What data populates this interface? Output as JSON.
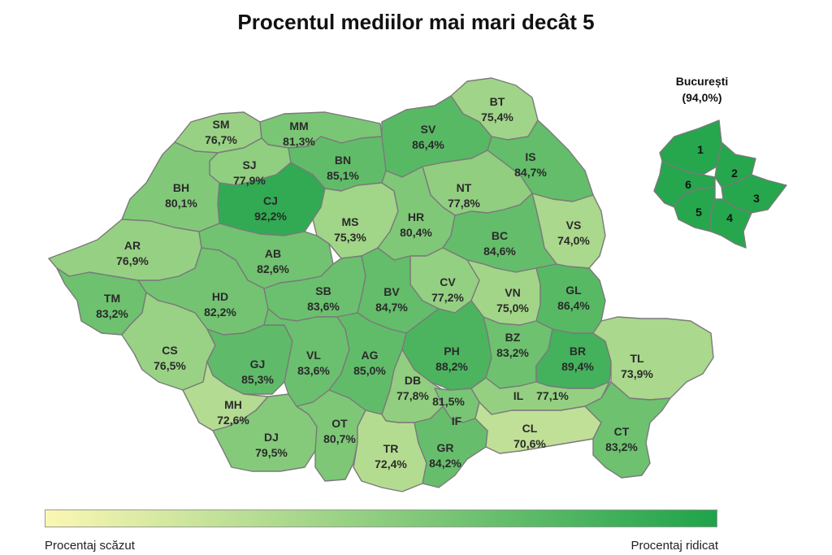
{
  "title": "Procentul mediilor mai mari decât 5",
  "bucuresti": {
    "name": "București",
    "value_label": "(94,0%)",
    "sectors": [
      {
        "id": "1",
        "value": 94.0
      },
      {
        "id": "2",
        "value": 94.0
      },
      {
        "id": "3",
        "value": 94.0
      },
      {
        "id": "4",
        "value": 94.0
      },
      {
        "id": "5",
        "value": 94.0
      },
      {
        "id": "6",
        "value": 94.0
      }
    ]
  },
  "legend": {
    "low_label": "Procentaj scăzut",
    "high_label": "Procentaj ridicat",
    "color_low": "#fbf7b3",
    "color_high": "#1fa34a"
  },
  "chart_data": {
    "type": "choropleth",
    "regions": [
      {
        "code": "SM",
        "label": "76,7%",
        "value": 76.7
      },
      {
        "code": "MM",
        "label": "81,3%",
        "value": 81.3
      },
      {
        "code": "BT",
        "label": "75,4%",
        "value": 75.4
      },
      {
        "code": "SV",
        "label": "86,4%",
        "value": 86.4
      },
      {
        "code": "SJ",
        "label": "77,9%",
        "value": 77.9
      },
      {
        "code": "BN",
        "label": "85,1%",
        "value": 85.1
      },
      {
        "code": "IS",
        "label": "84,7%",
        "value": 84.7
      },
      {
        "code": "BH",
        "label": "80,1%",
        "value": 80.1
      },
      {
        "code": "CJ",
        "label": "92,2%",
        "value": 92.2
      },
      {
        "code": "NT",
        "label": "77,8%",
        "value": 77.8
      },
      {
        "code": "MS",
        "label": "75,3%",
        "value": 75.3
      },
      {
        "code": "HR",
        "label": "80,4%",
        "value": 80.4
      },
      {
        "code": "VS",
        "label": "74,0%",
        "value": 74.0
      },
      {
        "code": "BC",
        "label": "84,6%",
        "value": 84.6
      },
      {
        "code": "AR",
        "label": "76,9%",
        "value": 76.9
      },
      {
        "code": "AB",
        "label": "82,6%",
        "value": 82.6
      },
      {
        "code": "CV",
        "label": "77,2%",
        "value": 77.2
      },
      {
        "code": "TM",
        "label": "83,2%",
        "value": 83.2
      },
      {
        "code": "HD",
        "label": "82,2%",
        "value": 82.2
      },
      {
        "code": "SB",
        "label": "83,6%",
        "value": 83.6
      },
      {
        "code": "BV",
        "label": "84,7%",
        "value": 84.7
      },
      {
        "code": "VN",
        "label": "75,0%",
        "value": 75.0
      },
      {
        "code": "GL",
        "label": "86,4%",
        "value": 86.4
      },
      {
        "code": "CS",
        "label": "76,5%",
        "value": 76.5
      },
      {
        "code": "GJ",
        "label": "85,3%",
        "value": 85.3
      },
      {
        "code": "VL",
        "label": "83,6%",
        "value": 83.6
      },
      {
        "code": "AG",
        "label": "85,0%",
        "value": 85.0
      },
      {
        "code": "PH",
        "label": "88,2%",
        "value": 88.2
      },
      {
        "code": "BZ",
        "label": "83,2%",
        "value": 83.2
      },
      {
        "code": "BR",
        "label": "89,4%",
        "value": 89.4
      },
      {
        "code": "TL",
        "label": "73,9%",
        "value": 73.9
      },
      {
        "code": "DB",
        "label": "77,8%",
        "value": 77.8
      },
      {
        "code": "MH",
        "label": "72,6%",
        "value": 72.6
      },
      {
        "code": "IF",
        "label": "81,5%",
        "value": 81.5
      },
      {
        "code": "IL",
        "label": "77,1%",
        "value": 77.1
      },
      {
        "code": "DJ",
        "label": "79,5%",
        "value": 79.5
      },
      {
        "code": "OT",
        "label": "80,7%",
        "value": 80.7
      },
      {
        "code": "TR",
        "label": "72,4%",
        "value": 72.4
      },
      {
        "code": "GR",
        "label": "84,2%",
        "value": 84.2
      },
      {
        "code": "CL",
        "label": "70,6%",
        "value": 70.6
      },
      {
        "code": "CT",
        "label": "83,2%",
        "value": 83.2
      }
    ],
    "value_range": [
      70,
      95
    ]
  }
}
